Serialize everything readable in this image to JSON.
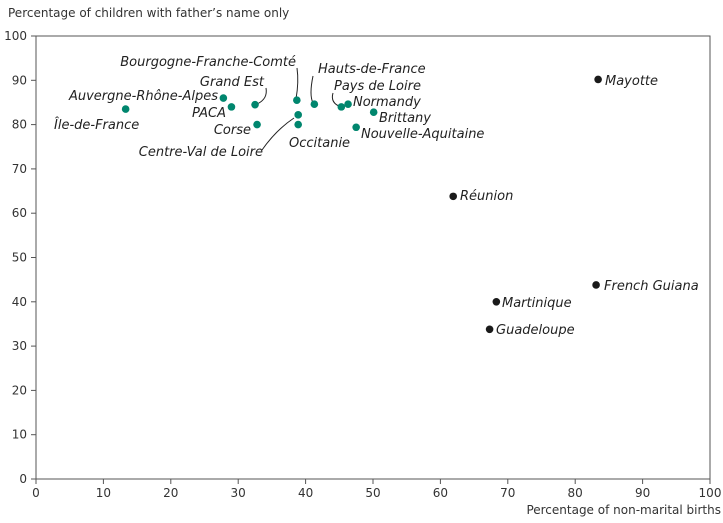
{
  "chart_data": {
    "type": "scatter",
    "ylabel": "Percentage of children with father’s name only",
    "xlabel": "Percentage of non-marital births",
    "xlim": [
      0,
      100
    ],
    "ylim": [
      0,
      100
    ],
    "x_ticks": [
      0,
      10,
      20,
      30,
      40,
      50,
      60,
      70,
      80,
      90,
      100
    ],
    "y_ticks": [
      0,
      10,
      20,
      30,
      40,
      50,
      60,
      70,
      80,
      90,
      100
    ],
    "grid": false,
    "colors": {
      "mainland": "#00866e",
      "overseas": "#1a1a1a"
    },
    "points": [
      {
        "name": "Île-de-France",
        "x": 13.3,
        "y": 83.5,
        "group": "mainland"
      },
      {
        "name": "Auvergne-Rhône-Alpes",
        "x": 27.8,
        "y": 86,
        "group": "mainland"
      },
      {
        "name": "PACA",
        "x": 29,
        "y": 84,
        "group": "mainland"
      },
      {
        "name": "Grand Est",
        "x": 32.5,
        "y": 84.5,
        "group": "mainland"
      },
      {
        "name": "Corse",
        "x": 32.8,
        "y": 80,
        "group": "mainland"
      },
      {
        "name": "Bourgogne-Franche-Comté",
        "x": 38.7,
        "y": 85.5,
        "group": "mainland"
      },
      {
        "name": "Centre-Val de Loire",
        "x": 38.9,
        "y": 82.2,
        "group": "mainland"
      },
      {
        "name": "Occitanie",
        "x": 38.9,
        "y": 80,
        "group": "mainland"
      },
      {
        "name": "Hauts-de-France",
        "x": 41.3,
        "y": 84.6,
        "group": "mainland"
      },
      {
        "name": "Pays de Loire",
        "x": 45.3,
        "y": 84,
        "group": "mainland"
      },
      {
        "name": "Normandy",
        "x": 46.3,
        "y": 84.6,
        "group": "mainland"
      },
      {
        "name": "Brittany",
        "x": 50.1,
        "y": 82.8,
        "group": "mainland"
      },
      {
        "name": "Nouvelle-Aquitaine",
        "x": 47.5,
        "y": 79.4,
        "group": "mainland"
      },
      {
        "name": "Mayotte",
        "x": 83.4,
        "y": 90.2,
        "group": "overseas"
      },
      {
        "name": "Réunion",
        "x": 61.9,
        "y": 63.8,
        "group": "overseas"
      },
      {
        "name": "French Guiana",
        "x": 83.1,
        "y": 43.8,
        "group": "overseas"
      },
      {
        "name": "Martinique",
        "x": 68.3,
        "y": 40,
        "group": "overseas"
      },
      {
        "name": "Guadeloupe",
        "x": 67.3,
        "y": 33.8,
        "group": "overseas"
      }
    ]
  }
}
